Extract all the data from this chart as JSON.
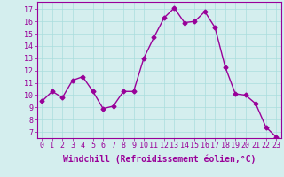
{
  "x": [
    0,
    1,
    2,
    3,
    4,
    5,
    6,
    7,
    8,
    9,
    10,
    11,
    12,
    13,
    14,
    15,
    16,
    17,
    18,
    19,
    20,
    21,
    22,
    23
  ],
  "y": [
    9.5,
    10.3,
    9.8,
    11.2,
    11.5,
    10.3,
    8.9,
    9.1,
    10.3,
    10.3,
    13.0,
    14.7,
    16.3,
    17.1,
    15.9,
    16.0,
    16.8,
    15.5,
    12.3,
    10.1,
    10.0,
    9.3,
    7.4,
    6.6
  ],
  "line_color": "#990099",
  "marker": "D",
  "markersize": 2.5,
  "linewidth": 1.0,
  "xlabel": "Windchill (Refroidissement éolien,°C)",
  "xlabel_fontsize": 7,
  "xtick_labels": [
    "0",
    "1",
    "2",
    "3",
    "4",
    "5",
    "6",
    "7",
    "8",
    "9",
    "10",
    "11",
    "12",
    "13",
    "14",
    "15",
    "16",
    "17",
    "18",
    "19",
    "20",
    "21",
    "22",
    "23"
  ],
  "ylim": [
    6.5,
    17.6
  ],
  "yticks": [
    7,
    8,
    9,
    10,
    11,
    12,
    13,
    14,
    15,
    16,
    17
  ],
  "grid_color": "#aadddd",
  "bg_color": "#d4eeee",
  "tick_color": "#990099",
  "tick_fontsize": 6,
  "spine_color": "#990099"
}
